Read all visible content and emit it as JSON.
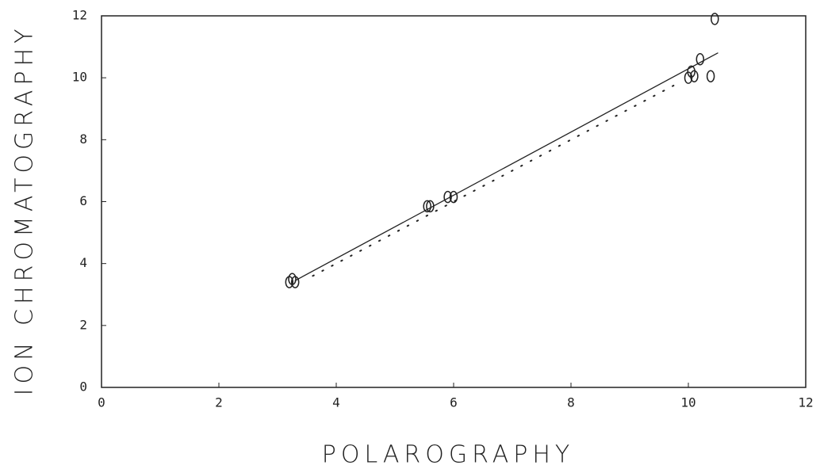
{
  "chart_data": {
    "type": "scatter",
    "xlabel": "POLAROGRAPHY",
    "ylabel": "ION CHROMATOGRAPHY",
    "x": [
      3.2,
      3.25,
      3.3,
      5.55,
      5.6,
      5.9,
      6.0,
      10.0,
      10.05,
      10.1,
      10.2,
      10.38,
      10.45
    ],
    "values": [
      3.4,
      3.5,
      3.4,
      5.85,
      5.85,
      6.15,
      6.15,
      10.0,
      10.2,
      10.05,
      10.6,
      10.05,
      11.9
    ],
    "color": "#222222",
    "fit_line": {
      "x": [
        3.3,
        10.5
      ],
      "y": [
        3.45,
        10.8
      ],
      "style": "solid"
    },
    "reference_line": {
      "x": [
        3.6,
        9.8
      ],
      "y": [
        3.6,
        9.8
      ],
      "style": "dotted"
    },
    "xlim": [
      0,
      12
    ],
    "xticks": [
      0,
      2,
      4,
      6,
      8,
      10,
      12
    ],
    "ylim": [
      0,
      12
    ],
    "yticks": [
      0,
      2,
      4,
      6,
      8,
      10,
      12
    ],
    "grid": false
  }
}
